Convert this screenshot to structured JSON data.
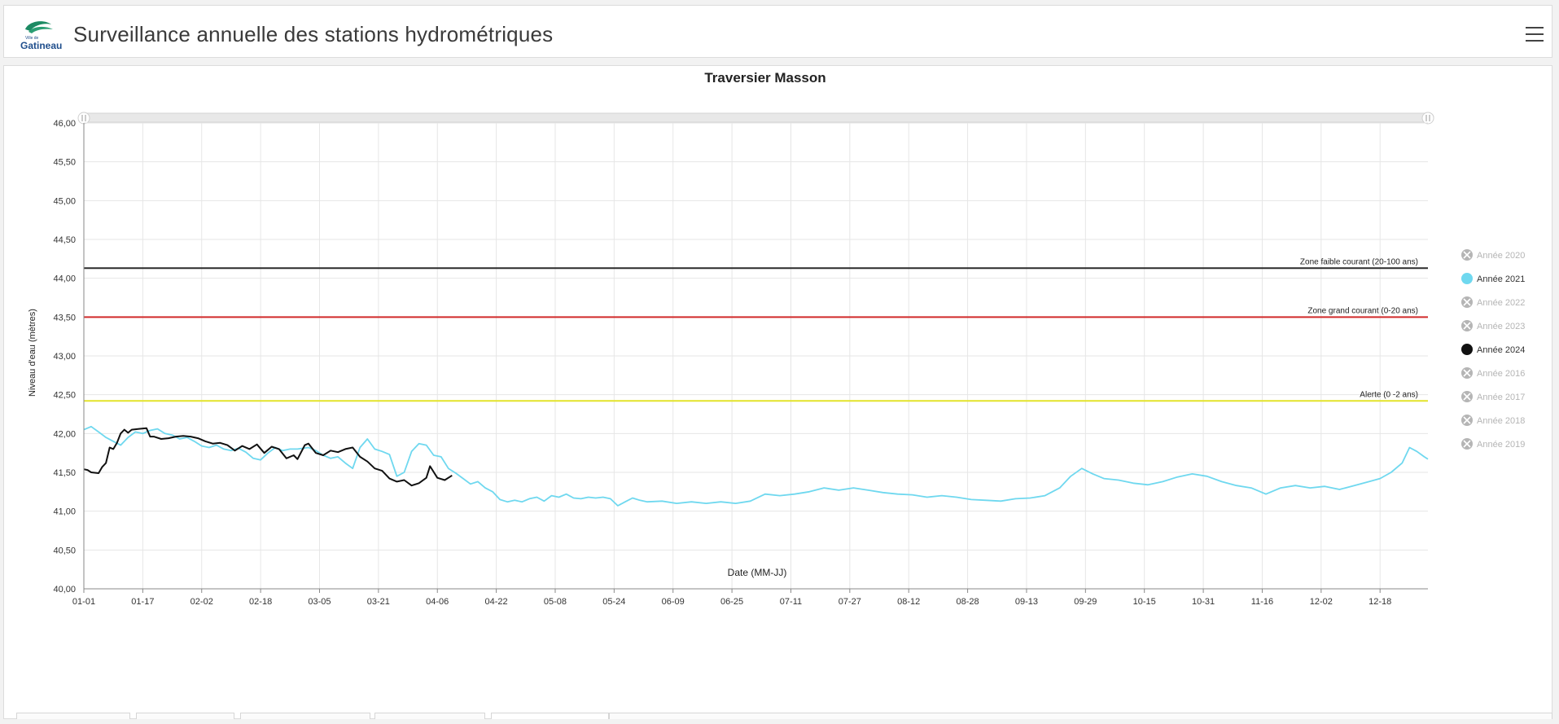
{
  "app": {
    "title": "Surveillance annuelle des stations hydrométriques",
    "logo_small_text": "Ville de",
    "logo_text": "Gatineau",
    "menu_icon": "hamburger-menu-icon"
  },
  "colors": {
    "series_2021": "#6fd8ef",
    "series_2024": "#111111",
    "zone_faible": "#2b2b2b",
    "zone_grand": "#d12a2a",
    "alerte": "#e3e32a",
    "legend_disabled": "#b5b5b5",
    "logo_green": "#1c8a63",
    "logo_blue": "#1f4e8c"
  },
  "chart_data": {
    "type": "line",
    "title": "Traversier Masson",
    "xlabel": "Date (MM-JJ)",
    "ylabel": "Niveau d'eau (mètres)",
    "ylim": [
      40.0,
      46.0
    ],
    "x_domain_days": [
      1,
      366
    ],
    "grid": true,
    "legend_position": "right",
    "y_ticks": [
      "40,00",
      "40,50",
      "41,00",
      "41,50",
      "42,00",
      "42,50",
      "43,00",
      "43,50",
      "44,00",
      "44,50",
      "45,00",
      "45,50",
      "46,00"
    ],
    "x_ticks": [
      "01-01",
      "01-17",
      "02-02",
      "02-18",
      "03-05",
      "03-21",
      "04-06",
      "04-22",
      "05-08",
      "05-24",
      "06-09",
      "06-25",
      "07-11",
      "07-27",
      "08-12",
      "08-28",
      "09-13",
      "09-29",
      "10-15",
      "10-31",
      "11-16",
      "12-02",
      "12-18"
    ],
    "thresholds": [
      {
        "name": "Zone faible courant (20-100 ans)",
        "value": 44.13
      },
      {
        "name": "Zone grand courant (0-20 ans)",
        "value": 43.5
      },
      {
        "name": "Alerte (0 -2 ans)",
        "value": 42.42
      }
    ],
    "series": [
      {
        "name": "Année 2021",
        "points": [
          [
            "01-01",
            42.05
          ],
          [
            "01-03",
            42.09
          ],
          [
            "01-05",
            42.02
          ],
          [
            "01-07",
            41.95
          ],
          [
            "01-09",
            41.9
          ],
          [
            "01-11",
            41.85
          ],
          [
            "01-13",
            41.95
          ],
          [
            "01-15",
            42.02
          ],
          [
            "01-17",
            42.0
          ],
          [
            "01-19",
            42.04
          ],
          [
            "01-21",
            42.06
          ],
          [
            "01-23",
            42.0
          ],
          [
            "01-25",
            41.98
          ],
          [
            "01-27",
            41.93
          ],
          [
            "01-29",
            41.95
          ],
          [
            "01-31",
            41.9
          ],
          [
            "02-02",
            41.84
          ],
          [
            "02-04",
            41.82
          ],
          [
            "02-06",
            41.85
          ],
          [
            "02-08",
            41.8
          ],
          [
            "02-10",
            41.78
          ],
          [
            "02-12",
            41.81
          ],
          [
            "02-14",
            41.76
          ],
          [
            "02-16",
            41.68
          ],
          [
            "02-18",
            41.66
          ],
          [
            "02-20",
            41.75
          ],
          [
            "02-22",
            41.82
          ],
          [
            "02-24",
            41.78
          ],
          [
            "02-26",
            41.8
          ],
          [
            "02-28",
            41.8
          ],
          [
            "03-02",
            41.82
          ],
          [
            "03-04",
            41.78
          ],
          [
            "03-06",
            41.72
          ],
          [
            "03-08",
            41.68
          ],
          [
            "03-10",
            41.7
          ],
          [
            "03-12",
            41.62
          ],
          [
            "03-14",
            41.55
          ],
          [
            "03-16",
            41.82
          ],
          [
            "03-18",
            41.93
          ],
          [
            "03-20",
            41.8
          ],
          [
            "03-22",
            41.77
          ],
          [
            "03-24",
            41.73
          ],
          [
            "03-26",
            41.45
          ],
          [
            "03-28",
            41.5
          ],
          [
            "03-30",
            41.77
          ],
          [
            "04-01",
            41.87
          ],
          [
            "04-03",
            41.85
          ],
          [
            "04-05",
            41.72
          ],
          [
            "04-07",
            41.7
          ],
          [
            "04-09",
            41.55
          ],
          [
            "04-11",
            41.49
          ],
          [
            "04-13",
            41.42
          ],
          [
            "04-15",
            41.35
          ],
          [
            "04-17",
            41.38
          ],
          [
            "04-19",
            41.3
          ],
          [
            "04-21",
            41.25
          ],
          [
            "04-23",
            41.15
          ],
          [
            "04-25",
            41.12
          ],
          [
            "04-27",
            41.14
          ],
          [
            "04-29",
            41.12
          ],
          [
            "05-01",
            41.16
          ],
          [
            "05-03",
            41.18
          ],
          [
            "05-05",
            41.13
          ],
          [
            "05-07",
            41.2
          ],
          [
            "05-09",
            41.18
          ],
          [
            "05-11",
            41.22
          ],
          [
            "05-13",
            41.17
          ],
          [
            "05-15",
            41.16
          ],
          [
            "05-17",
            41.18
          ],
          [
            "05-19",
            41.17
          ],
          [
            "05-21",
            41.18
          ],
          [
            "05-23",
            41.16
          ],
          [
            "05-25",
            41.07
          ],
          [
            "05-27",
            41.12
          ],
          [
            "05-29",
            41.17
          ],
          [
            "05-31",
            41.14
          ],
          [
            "06-02",
            41.12
          ],
          [
            "06-06",
            41.13
          ],
          [
            "06-10",
            41.1
          ],
          [
            "06-14",
            41.12
          ],
          [
            "06-18",
            41.1
          ],
          [
            "06-22",
            41.12
          ],
          [
            "06-26",
            41.1
          ],
          [
            "06-30",
            41.13
          ],
          [
            "07-04",
            41.22
          ],
          [
            "07-08",
            41.2
          ],
          [
            "07-12",
            41.22
          ],
          [
            "07-16",
            41.25
          ],
          [
            "07-20",
            41.3
          ],
          [
            "07-24",
            41.27
          ],
          [
            "07-28",
            41.3
          ],
          [
            "08-01",
            41.27
          ],
          [
            "08-05",
            41.24
          ],
          [
            "08-09",
            41.22
          ],
          [
            "08-13",
            41.21
          ],
          [
            "08-17",
            41.18
          ],
          [
            "08-21",
            41.2
          ],
          [
            "08-25",
            41.18
          ],
          [
            "08-29",
            41.15
          ],
          [
            "09-02",
            41.14
          ],
          [
            "09-06",
            41.13
          ],
          [
            "09-10",
            41.16
          ],
          [
            "09-14",
            41.17
          ],
          [
            "09-18",
            41.2
          ],
          [
            "09-22",
            41.3
          ],
          [
            "09-25",
            41.45
          ],
          [
            "09-28",
            41.55
          ],
          [
            "10-01",
            41.48
          ],
          [
            "10-04",
            41.42
          ],
          [
            "10-08",
            41.4
          ],
          [
            "10-12",
            41.36
          ],
          [
            "10-16",
            41.34
          ],
          [
            "10-20",
            41.38
          ],
          [
            "10-24",
            41.44
          ],
          [
            "10-28",
            41.48
          ],
          [
            "11-01",
            41.45
          ],
          [
            "11-05",
            41.38
          ],
          [
            "11-09",
            41.33
          ],
          [
            "11-13",
            41.3
          ],
          [
            "11-17",
            41.22
          ],
          [
            "11-21",
            41.3
          ],
          [
            "11-25",
            41.33
          ],
          [
            "11-29",
            41.3
          ],
          [
            "12-03",
            41.32
          ],
          [
            "12-07",
            41.28
          ],
          [
            "12-11",
            41.33
          ],
          [
            "12-15",
            41.38
          ],
          [
            "12-18",
            41.42
          ],
          [
            "12-21",
            41.5
          ],
          [
            "12-24",
            41.62
          ],
          [
            "12-26",
            41.82
          ],
          [
            "12-28",
            41.77
          ],
          [
            "12-30",
            41.7
          ],
          [
            "12-31",
            41.67
          ]
        ]
      },
      {
        "name": "Année 2024",
        "points": [
          [
            "01-01",
            41.54
          ],
          [
            "01-02",
            41.53
          ],
          [
            "01-03",
            41.5
          ],
          [
            "01-05",
            41.49
          ],
          [
            "01-06",
            41.57
          ],
          [
            "01-07",
            41.62
          ],
          [
            "01-08",
            41.82
          ],
          [
            "01-09",
            41.8
          ],
          [
            "01-10",
            41.88
          ],
          [
            "01-11",
            42.0
          ],
          [
            "01-12",
            42.05
          ],
          [
            "01-13",
            42.01
          ],
          [
            "01-14",
            42.05
          ],
          [
            "01-16",
            42.06
          ],
          [
            "01-18",
            42.07
          ],
          [
            "01-19",
            41.96
          ],
          [
            "01-20",
            41.96
          ],
          [
            "01-22",
            41.93
          ],
          [
            "01-24",
            41.94
          ],
          [
            "01-26",
            41.96
          ],
          [
            "01-28",
            41.97
          ],
          [
            "01-30",
            41.96
          ],
          [
            "02-01",
            41.94
          ],
          [
            "02-03",
            41.9
          ],
          [
            "02-05",
            41.87
          ],
          [
            "02-07",
            41.88
          ],
          [
            "02-09",
            41.85
          ],
          [
            "02-11",
            41.78
          ],
          [
            "02-13",
            41.84
          ],
          [
            "02-15",
            41.8
          ],
          [
            "02-17",
            41.86
          ],
          [
            "02-19",
            41.75
          ],
          [
            "02-21",
            41.83
          ],
          [
            "02-23",
            41.8
          ],
          [
            "02-25",
            41.68
          ],
          [
            "02-27",
            41.72
          ],
          [
            "02-28",
            41.67
          ],
          [
            "03-01",
            41.85
          ],
          [
            "03-02",
            41.87
          ],
          [
            "03-04",
            41.75
          ],
          [
            "03-06",
            41.72
          ],
          [
            "03-08",
            41.78
          ],
          [
            "03-10",
            41.76
          ],
          [
            "03-12",
            41.8
          ],
          [
            "03-14",
            41.82
          ],
          [
            "03-16",
            41.7
          ],
          [
            "03-18",
            41.64
          ],
          [
            "03-20",
            41.55
          ],
          [
            "03-22",
            41.52
          ],
          [
            "03-24",
            41.42
          ],
          [
            "03-26",
            41.38
          ],
          [
            "03-28",
            41.4
          ],
          [
            "03-30",
            41.33
          ],
          [
            "04-01",
            41.36
          ],
          [
            "04-03",
            41.43
          ],
          [
            "04-04",
            41.58
          ],
          [
            "04-06",
            41.43
          ],
          [
            "04-08",
            41.4
          ],
          [
            "04-10",
            41.46
          ]
        ]
      }
    ],
    "legend": [
      {
        "label": "Année 2020",
        "state": "disabled"
      },
      {
        "label": "Année 2021",
        "state": "active",
        "color": "#6fd8ef"
      },
      {
        "label": "Année 2022",
        "state": "disabled"
      },
      {
        "label": "Année 2023",
        "state": "disabled"
      },
      {
        "label": "Année 2024",
        "state": "active",
        "color": "#111111"
      },
      {
        "label": "Année 2016",
        "state": "disabled"
      },
      {
        "label": "Année 2017",
        "state": "disabled"
      },
      {
        "label": "Année 2018",
        "state": "disabled"
      },
      {
        "label": "Année 2019",
        "state": "disabled"
      }
    ]
  }
}
